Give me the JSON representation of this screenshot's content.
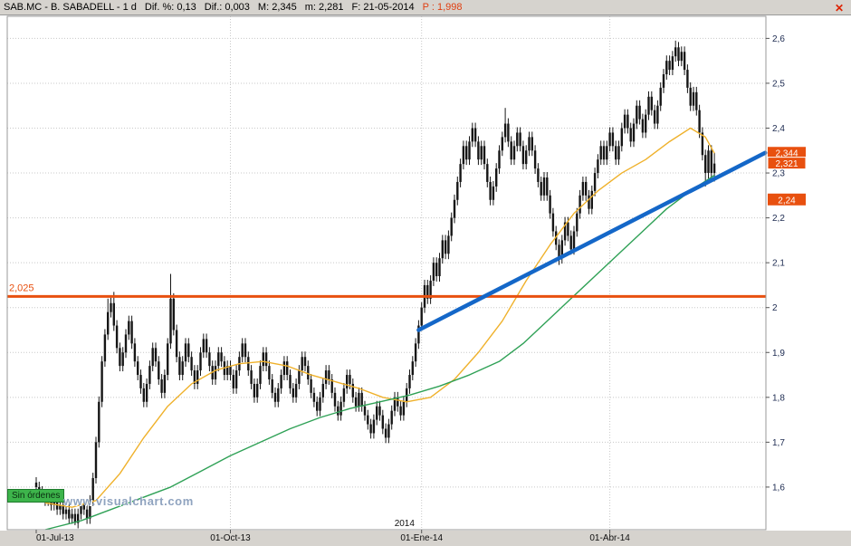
{
  "window": {
    "icons": {
      "close-icon": "✕"
    }
  },
  "header": {
    "parts": [
      {
        "text": "SAB.MC - B. SABADELL - 1 d",
        "color": "#000000"
      },
      {
        "text": "Dif. %: 0,13",
        "color": "#000000"
      },
      {
        "text": "Dif.: 0,003",
        "color": "#000000"
      },
      {
        "text": "M: 2,345",
        "color": "#000000"
      },
      {
        "text": "m: 2,281",
        "color": "#000000"
      },
      {
        "text": "F: 21-05-2014",
        "color": "#000000"
      },
      {
        "text": "P : 1,998",
        "color": "#e03e10"
      }
    ]
  },
  "footer": {
    "no_orders_label": "Sin órdenes",
    "watermark": "www.visualchart.com"
  },
  "chart_data": {
    "type": "candlestick",
    "symbol": "SAB.MC",
    "name": "B. SABADELL",
    "period": "1 d",
    "last_date": "21-05-2014",
    "session": {
      "dif_pct": 0.13,
      "dif": 0.003,
      "max": 2.345,
      "min": 2.281,
      "p": 1.998,
      "last": 2.321
    },
    "ylim": [
      1.505,
      2.625
    ],
    "y_ticks": [
      {
        "v": 2.6,
        "label": "2,6"
      },
      {
        "v": 2.5,
        "label": "2,5"
      },
      {
        "v": 2.4,
        "label": "2,4"
      },
      {
        "v": 2.3,
        "label": "2,3"
      },
      {
        "v": 2.2,
        "label": "2,2"
      },
      {
        "v": 2.1,
        "label": "2,1"
      },
      {
        "v": 2.0,
        "label": "2"
      },
      {
        "v": 1.9,
        "label": "1,9"
      },
      {
        "v": 1.8,
        "label": "1,8"
      },
      {
        "v": 1.7,
        "label": "1,7"
      },
      {
        "v": 1.6,
        "label": "1,6"
      }
    ],
    "x_ticks": [
      {
        "i": 0,
        "label": "01-Jul-13"
      },
      {
        "i": 65,
        "label": "01-Oct-13"
      },
      {
        "i": 129,
        "label": "01-Ene-14"
      },
      {
        "i": 192,
        "label": "01-Abr-14"
      }
    ],
    "year_label": "2014",
    "first_open": 1.61,
    "default_wick": 0.012,
    "closes": [
      1.6,
      1.59,
      1.58,
      1.57,
      1.58,
      1.56,
      1.57,
      1.55,
      1.56,
      1.54,
      1.55,
      1.53,
      1.54,
      1.52,
      1.54,
      1.56,
      1.55,
      1.53,
      1.57,
      1.62,
      1.7,
      1.79,
      1.88,
      1.94,
      1.99,
      2.01,
      1.96,
      1.91,
      1.87,
      1.9,
      1.94,
      1.97,
      1.92,
      1.88,
      1.85,
      1.82,
      1.79,
      1.83,
      1.87,
      1.91,
      1.88,
      1.84,
      1.81,
      1.85,
      1.92,
      2.02,
      1.95,
      1.89,
      1.85,
      1.88,
      1.92,
      1.89,
      1.86,
      1.83,
      1.86,
      1.9,
      1.93,
      1.9,
      1.87,
      1.84,
      1.87,
      1.9,
      1.88,
      1.85,
      1.87,
      1.85,
      1.82,
      1.86,
      1.89,
      1.92,
      1.89,
      1.86,
      1.83,
      1.8,
      1.83,
      1.87,
      1.9,
      1.87,
      1.84,
      1.81,
      1.79,
      1.82,
      1.85,
      1.88,
      1.85,
      1.82,
      1.8,
      1.83,
      1.86,
      1.89,
      1.87,
      1.84,
      1.81,
      1.79,
      1.77,
      1.8,
      1.83,
      1.86,
      1.84,
      1.81,
      1.78,
      1.76,
      1.79,
      1.82,
      1.85,
      1.83,
      1.8,
      1.78,
      1.81,
      1.78,
      1.76,
      1.74,
      1.72,
      1.75,
      1.78,
      1.76,
      1.73,
      1.71,
      1.74,
      1.77,
      1.8,
      1.78,
      1.76,
      1.79,
      1.82,
      1.85,
      1.88,
      1.92,
      1.96,
      2.0,
      2.05,
      2.02,
      2.06,
      2.1,
      2.07,
      2.11,
      2.15,
      2.12,
      2.16,
      2.2,
      2.24,
      2.28,
      2.32,
      2.36,
      2.33,
      2.37,
      2.4,
      2.37,
      2.33,
      2.36,
      2.32,
      2.28,
      2.24,
      2.27,
      2.31,
      2.35,
      2.38,
      2.41,
      2.37,
      2.33,
      2.36,
      2.39,
      2.36,
      2.32,
      2.35,
      2.38,
      2.35,
      2.31,
      2.28,
      2.25,
      2.29,
      2.25,
      2.21,
      2.17,
      2.14,
      2.11,
      2.15,
      2.19,
      2.16,
      2.13,
      2.17,
      2.21,
      2.25,
      2.28,
      2.25,
      2.22,
      2.26,
      2.3,
      2.33,
      2.36,
      2.33,
      2.36,
      2.39,
      2.36,
      2.33,
      2.36,
      2.4,
      2.43,
      2.4,
      2.37,
      2.41,
      2.45,
      2.42,
      2.39,
      2.43,
      2.47,
      2.44,
      2.41,
      2.45,
      2.49,
      2.52,
      2.55,
      2.53,
      2.56,
      2.58,
      2.55,
      2.57,
      2.53,
      2.49,
      2.45,
      2.48,
      2.44,
      2.39,
      2.34,
      2.3,
      2.35,
      2.3,
      2.321
    ],
    "wick_overrides": [
      {
        "i": 13,
        "low": 1.515
      },
      {
        "i": 24,
        "high": 2.02
      },
      {
        "i": 26,
        "high": 2.035
      },
      {
        "i": 45,
        "high": 2.075
      },
      {
        "i": 157,
        "high": 2.445
      },
      {
        "i": 175,
        "low": 2.095
      },
      {
        "i": 214,
        "high": 2.595
      },
      {
        "i": 224,
        "low": 2.27
      },
      {
        "i": 227,
        "high": 2.345,
        "low": 2.281
      }
    ],
    "moving_averages": [
      {
        "name": "ma-fast",
        "color": "#efb12b",
        "points": [
          [
            3,
            1.565
          ],
          [
            12,
            1.555
          ],
          [
            20,
            1.57
          ],
          [
            28,
            1.63
          ],
          [
            36,
            1.71
          ],
          [
            44,
            1.78
          ],
          [
            52,
            1.83
          ],
          [
            60,
            1.86
          ],
          [
            68,
            1.875
          ],
          [
            76,
            1.88
          ],
          [
            84,
            1.87
          ],
          [
            92,
            1.85
          ],
          [
            100,
            1.835
          ],
          [
            108,
            1.82
          ],
          [
            116,
            1.8
          ],
          [
            124,
            1.79
          ],
          [
            132,
            1.8
          ],
          [
            140,
            1.84
          ],
          [
            148,
            1.9
          ],
          [
            156,
            1.97
          ],
          [
            164,
            2.06
          ],
          [
            172,
            2.14
          ],
          [
            180,
            2.21
          ],
          [
            188,
            2.26
          ],
          [
            196,
            2.3
          ],
          [
            204,
            2.33
          ],
          [
            212,
            2.37
          ],
          [
            219,
            2.4
          ],
          [
            224,
            2.38
          ],
          [
            227,
            2.344
          ]
        ]
      },
      {
        "name": "ma-slow",
        "color": "#2fa156",
        "points": [
          [
            3,
            1.505
          ],
          [
            15,
            1.525
          ],
          [
            25,
            1.55
          ],
          [
            35,
            1.575
          ],
          [
            45,
            1.6
          ],
          [
            55,
            1.635
          ],
          [
            65,
            1.67
          ],
          [
            75,
            1.7
          ],
          [
            85,
            1.73
          ],
          [
            95,
            1.755
          ],
          [
            105,
            1.775
          ],
          [
            115,
            1.79
          ],
          [
            125,
            1.805
          ],
          [
            135,
            1.825
          ],
          [
            145,
            1.85
          ],
          [
            155,
            1.88
          ],
          [
            163,
            1.92
          ],
          [
            171,
            1.97
          ],
          [
            179,
            2.02
          ],
          [
            187,
            2.07
          ],
          [
            195,
            2.12
          ],
          [
            203,
            2.17
          ],
          [
            211,
            2.22
          ],
          [
            219,
            2.26
          ],
          [
            227,
            2.295
          ]
        ]
      }
    ],
    "trendline": {
      "color": "#1467c8",
      "from": [
        128,
        1.95
      ],
      "to": [
        244,
        2.345
      ]
    },
    "hline": {
      "price": 2.025,
      "label": "2,025",
      "color": "#e8500f"
    },
    "price_badges": [
      {
        "price": 2.344,
        "label": "2,344",
        "highlight": false
      },
      {
        "price": 2.321,
        "label": "2,321",
        "highlight": true
      },
      {
        "price": 2.24,
        "label": "2,24",
        "highlight": false
      }
    ],
    "colors": {
      "candle": "#161616",
      "grid": "#c8c8c8",
      "frame": "#9a9a9a",
      "axis_text": "#1c2a50",
      "date_text": "#101010",
      "badge_bg": "#e8500f",
      "badge_text": "#ffffff",
      "chrome": "#d6d3ce"
    }
  }
}
